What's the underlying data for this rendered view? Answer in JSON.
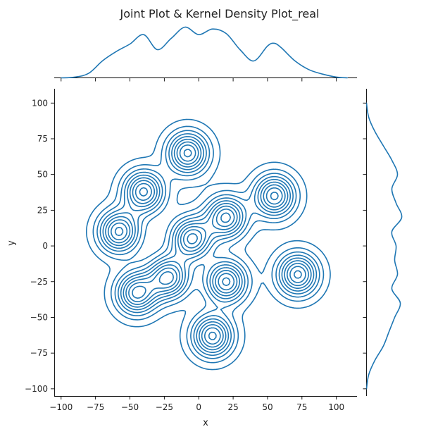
{
  "chart_data": {
    "type": "joint-kde",
    "title": "Joint Plot & Kernel Density Plot_real",
    "xlabel": "x",
    "ylabel": "y",
    "xlim": [
      -105,
      115
    ],
    "ylim": [
      -105,
      110
    ],
    "x_ticks": [
      -100,
      -75,
      -50,
      -25,
      0,
      25,
      50,
      75,
      100
    ],
    "y_ticks": [
      -100,
      -75,
      -50,
      -25,
      0,
      25,
      50,
      75,
      100
    ],
    "x_tick_labels": [
      "−100",
      "−75",
      "−50",
      "−25",
      "0",
      "25",
      "50",
      "75",
      "100"
    ],
    "y_tick_labels": [
      "−100",
      "−75",
      "−50",
      "−25",
      "0",
      "25",
      "50",
      "75",
      "100"
    ],
    "grid": false,
    "line_color": "#1f77b4",
    "contour_levels": 9,
    "clusters": [
      {
        "x": -58,
        "y": 10
      },
      {
        "x": -40,
        "y": 38
      },
      {
        "x": -8,
        "y": 65
      },
      {
        "x": -5,
        "y": 5
      },
      {
        "x": 20,
        "y": 20
      },
      {
        "x": 55,
        "y": 35
      },
      {
        "x": 72,
        "y": -20
      },
      {
        "x": -45,
        "y": -33
      },
      {
        "x": 10,
        "y": -63
      },
      {
        "x": 20,
        "y": -25
      },
      {
        "x": -22,
        "y": -22
      }
    ],
    "marginal_x": {
      "x": [
        -100,
        -90,
        -80,
        -70,
        -60,
        -50,
        -40,
        -30,
        -20,
        -10,
        0,
        10,
        20,
        30,
        40,
        50,
        55,
        60,
        70,
        80,
        90,
        100,
        108
      ],
      "density": [
        0.0,
        0.002,
        0.012,
        0.045,
        0.07,
        0.09,
        0.115,
        0.075,
        0.105,
        0.135,
        0.115,
        0.13,
        0.118,
        0.075,
        0.045,
        0.085,
        0.092,
        0.08,
        0.045,
        0.022,
        0.01,
        0.002,
        0.0
      ]
    },
    "marginal_y": {
      "y": [
        -100,
        -90,
        -80,
        -70,
        -60,
        -50,
        -40,
        -30,
        -20,
        -10,
        0,
        10,
        20,
        30,
        40,
        50,
        60,
        70,
        80,
        90,
        100
      ],
      "density": [
        0.0,
        0.008,
        0.03,
        0.06,
        0.08,
        0.1,
        0.12,
        0.09,
        0.11,
        0.1,
        0.105,
        0.09,
        0.125,
        0.105,
        0.09,
        0.11,
        0.09,
        0.06,
        0.03,
        0.008,
        0.0
      ]
    }
  }
}
